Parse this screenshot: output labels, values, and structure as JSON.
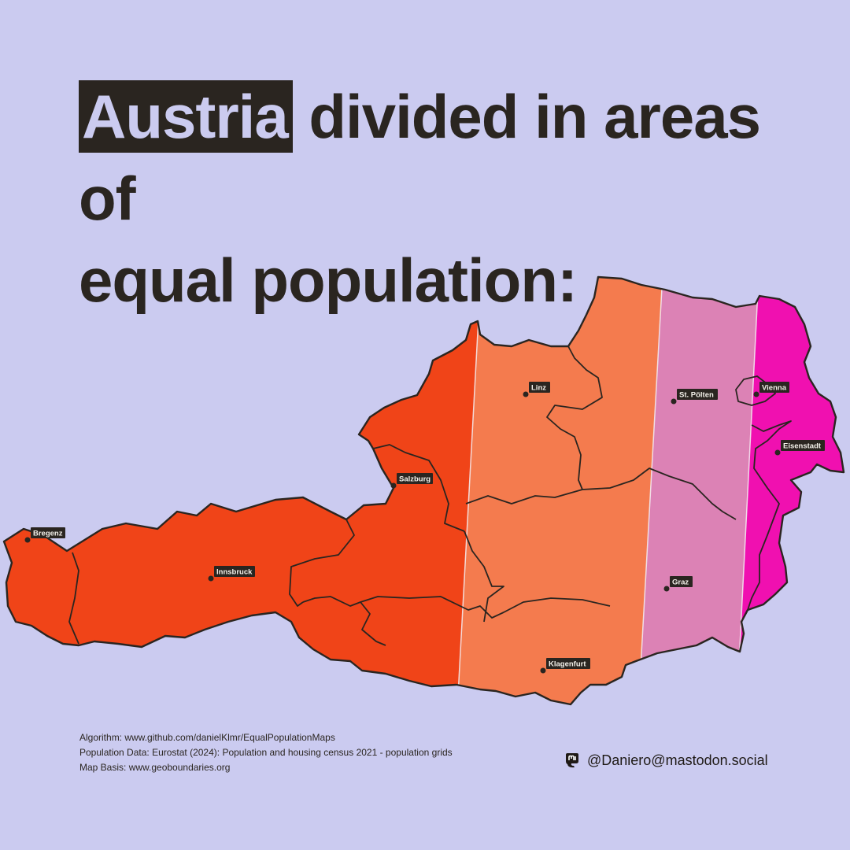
{
  "title": {
    "highlight": "Austria",
    "line1_rest": " divided in areas of",
    "line2": "equal population:"
  },
  "colors": {
    "background": "#cbcbf0",
    "zone_1": "#f04418",
    "zone_2": "#f47b4e",
    "zone_3": "#dc82b5",
    "zone_4": "#f010b0",
    "border": "#2a2520"
  },
  "map": {
    "zones": [
      {
        "name": "zone-1",
        "color": "#f04418"
      },
      {
        "name": "zone-2",
        "color": "#f47b4e"
      },
      {
        "name": "zone-3",
        "color": "#dc82b5"
      },
      {
        "name": "zone-4",
        "color": "#f010b0"
      }
    ],
    "cities": [
      {
        "key": "bregenz",
        "label": "Bregenz"
      },
      {
        "key": "innsbruck",
        "label": "Innsbruck"
      },
      {
        "key": "salzburg",
        "label": "Salzburg"
      },
      {
        "key": "linz",
        "label": "Linz"
      },
      {
        "key": "st-polten",
        "label": "St. Pölten"
      },
      {
        "key": "vienna",
        "label": "Vienna"
      },
      {
        "key": "eisenstadt",
        "label": "Eisenstadt"
      },
      {
        "key": "graz",
        "label": "Graz"
      },
      {
        "key": "klagenfurt",
        "label": "Klagenfurt"
      }
    ]
  },
  "credits": {
    "algorithm": "Algorithm: www.github.com/danielKlmr/EqualPopulationMaps",
    "population": "Population Data: Eurostat (2024): Population and housing census 2021 - population grids",
    "map_basis": "Map Basis: www.geoboundaries.org"
  },
  "author": {
    "handle": "@Daniero@mastodon.social",
    "icon": "mastodon-icon"
  }
}
